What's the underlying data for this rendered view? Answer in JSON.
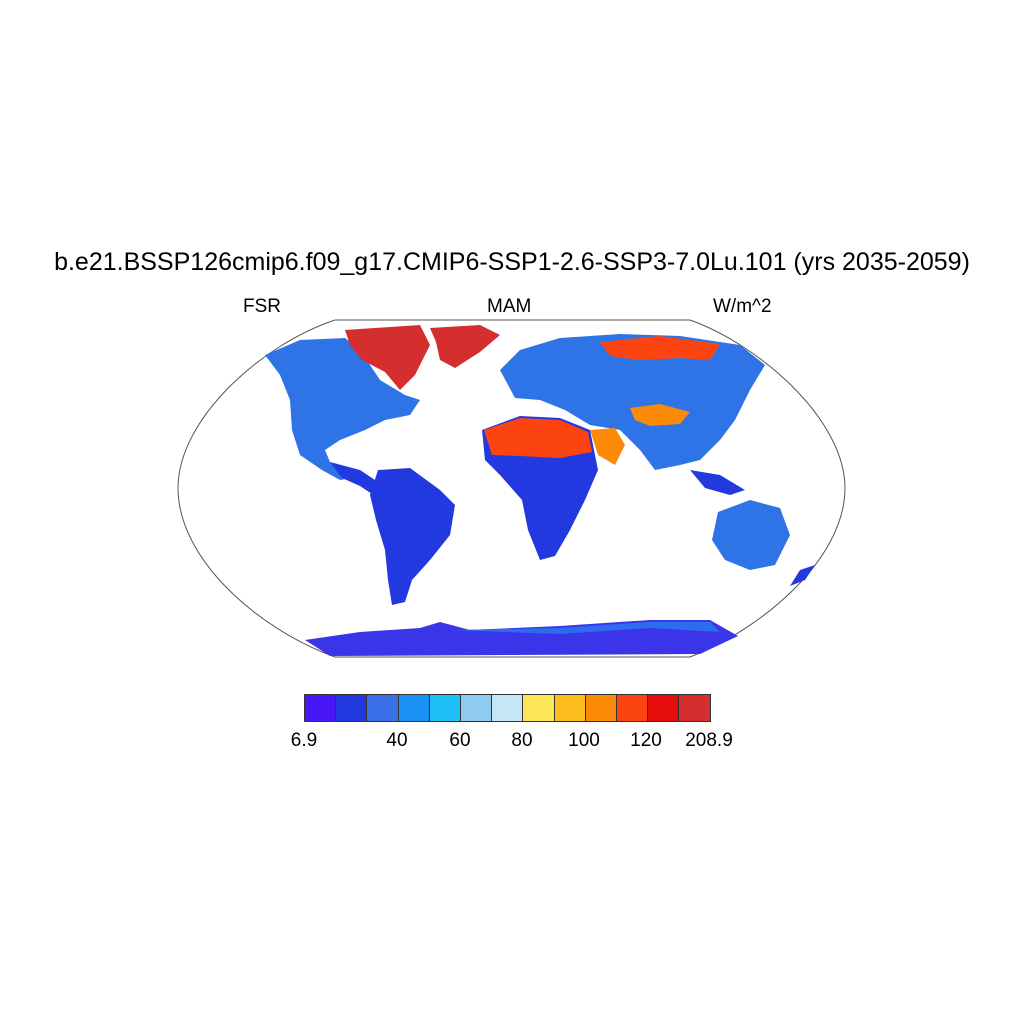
{
  "map": {
    "title": "b.e21.BSSP126cmip6.f09_g17.CMIP6-SSP1-2.6-SSP3-7.0Lu.101 (yrs 2035-2059)",
    "left_label": "FSR",
    "center_label": "MAM",
    "right_label": "W/m^2",
    "projection": "Robinson",
    "ocean_masked": true
  },
  "colorbar": {
    "colors": [
      "#4816f5",
      "#2339e0",
      "#3a70e8",
      "#1c91f5",
      "#1ec1f7",
      "#8fcbee",
      "#c5e6f5",
      "#fde756",
      "#fbbc1c",
      "#fb8a08",
      "#fb4410",
      "#e60d0d",
      "#d42e2e"
    ],
    "labels": [
      "6.9",
      "40",
      "60",
      "80",
      "100",
      "120",
      "208.9"
    ]
  }
}
